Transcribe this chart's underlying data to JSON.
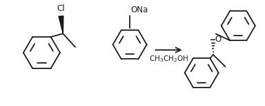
{
  "background_color": "#ffffff",
  "line_color": "#1a1a1a",
  "line_width": 1.3,
  "text_color": "#1a1a1a",
  "figsize": [
    3.84,
    1.55
  ],
  "dpi": 100,
  "cl_label": "Cl",
  "ona_label": "ONa",
  "o_label": "O",
  "arrow_label": "CH₃CH₂OH"
}
